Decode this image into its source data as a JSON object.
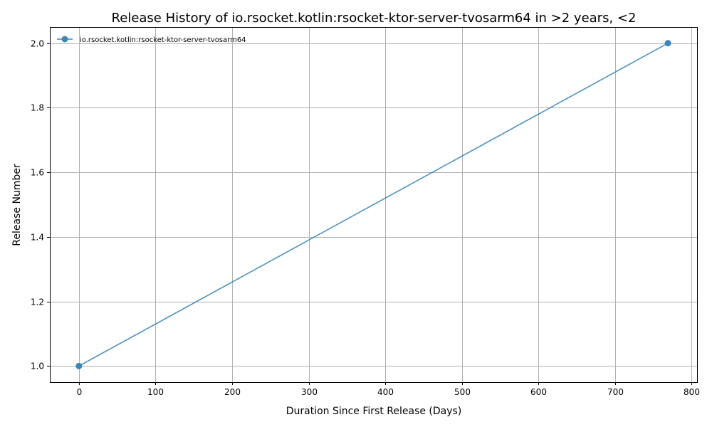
{
  "chart_data": {
    "type": "line",
    "title": "Release History of io.rsocket.kotlin:rsocket-ktor-server-tvosarm64 in >2 years, <2",
    "xlabel": "Duration Since First Release (Days)",
    "ylabel": "Release Number",
    "xlim": [
      -38,
      807
    ],
    "ylim": [
      0.95,
      2.05
    ],
    "xticks": [
      0,
      100,
      200,
      300,
      400,
      500,
      600,
      700,
      800
    ],
    "yticks": [
      1.0,
      1.2,
      1.4,
      1.6,
      1.8,
      2.0
    ],
    "xtick_labels": [
      "0",
      "100",
      "200",
      "300",
      "400",
      "500",
      "600",
      "700",
      "800"
    ],
    "ytick_labels": [
      "1.0",
      "1.2",
      "1.4",
      "1.6",
      "1.8",
      "2.0"
    ],
    "grid": true,
    "legend_position": "top-left",
    "series": [
      {
        "name": "io.rsocket.kotlin:rsocket-ktor-server-tvosarm64",
        "color": "#3a87be",
        "marker": "circle",
        "x": [
          0,
          769
        ],
        "y": [
          1,
          2
        ]
      }
    ]
  }
}
